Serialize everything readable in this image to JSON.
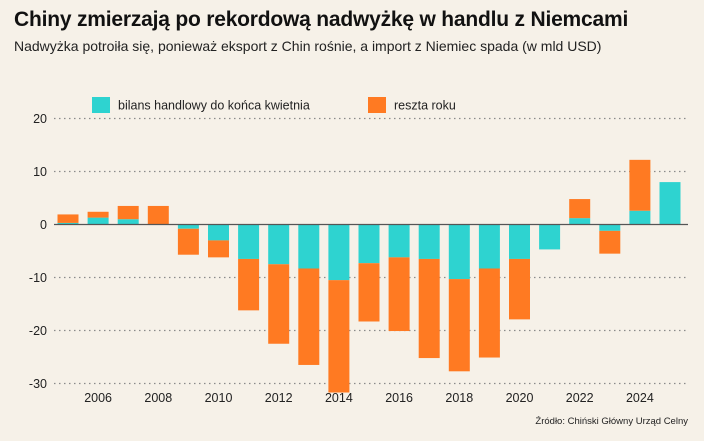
{
  "title": "Chiny zmierzają po rekordową nadwyżkę w handlu z Niemcami",
  "subtitle": "Nadwyżka potroiła się, ponieważ eksport z Chin rośnie, a import z Niemiec spada (w mld USD)",
  "source": "Źródło: Chiński Główny Urząd Celny",
  "chart_data": {
    "type": "bar",
    "stacked": true,
    "categories": [
      "2005",
      "2006",
      "2007",
      "2008",
      "2009",
      "2010",
      "2011",
      "2012",
      "2013",
      "2014",
      "2015",
      "2016",
      "2017",
      "2018",
      "2019",
      "2020",
      "2021",
      "2022",
      "2023",
      "2024",
      "2025"
    ],
    "x_tick_labels": [
      "2006",
      "2008",
      "2010",
      "2012",
      "2014",
      "2016",
      "2018",
      "2020",
      "2022",
      "2024"
    ],
    "series": [
      {
        "name": "bilans handlowy do końca kwietnia",
        "color": "#2ed3d0",
        "values": [
          0.3,
          1.3,
          1.0,
          0.0,
          -0.8,
          -3.0,
          -6.5,
          -7.5,
          -8.3,
          -10.5,
          -7.3,
          -6.2,
          -6.5,
          -10.3,
          -8.3,
          -6.5,
          -4.7,
          1.2,
          -1.2,
          2.6,
          8.0
        ]
      },
      {
        "name": "reszta roku",
        "color": "#ff7a22",
        "values": [
          1.6,
          1.1,
          2.5,
          3.5,
          -4.9,
          -3.2,
          -9.7,
          -15.0,
          -18.2,
          -21.2,
          -11.0,
          -13.9,
          -18.7,
          -17.4,
          -16.8,
          -11.4,
          0.0,
          3.6,
          -4.3,
          9.6,
          0.0
        ]
      }
    ],
    "ylim": [
      -31,
      22
    ],
    "yticks": [
      20,
      10,
      0,
      -10,
      -20,
      -30
    ],
    "grid": true,
    "legend": "top-left"
  }
}
